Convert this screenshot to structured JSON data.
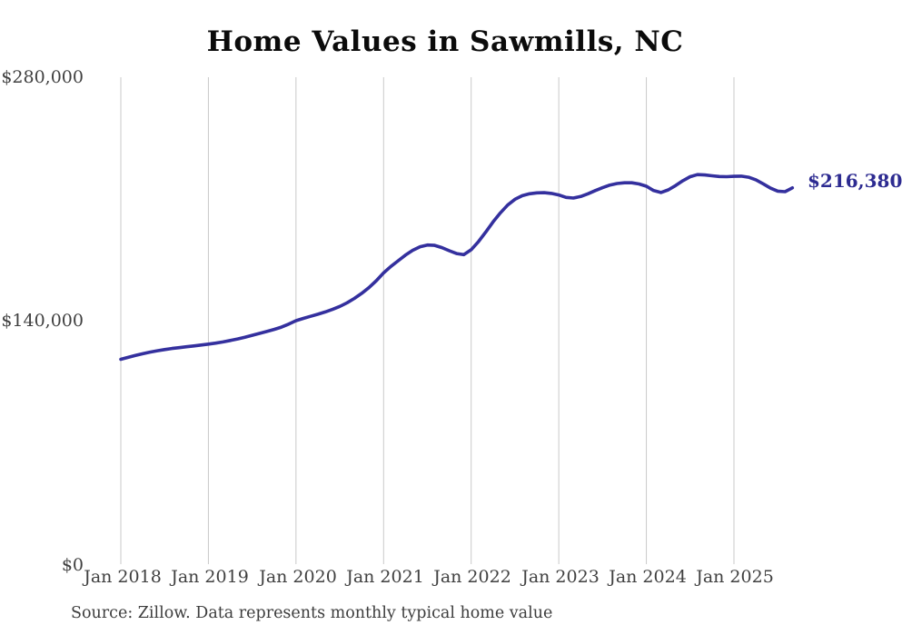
{
  "title": "Home Values in Sawmills, NC",
  "annotations": {
    "current_value": "$216,380"
  },
  "footer": {
    "source": "Source: Zillow. Data represents monthly typical home value"
  },
  "chart_data": {
    "type": "line",
    "title": "Home Values in Sawmills, NC",
    "series_name": "Monthly typical home value",
    "x_start_month": "Jan 2018",
    "x_end_month": "Sep 2025",
    "x_tick_labels": [
      "Jan 2018",
      "Jan 2019",
      "Jan 2020",
      "Jan 2021",
      "Jan 2022",
      "Jan 2023",
      "Jan 2024",
      "Jan 2025"
    ],
    "y_tick_labels": [
      "$0",
      "$140,000",
      "$280,000"
    ],
    "ylim": [
      0,
      280000
    ],
    "grid": "vertical-only",
    "legend": "none",
    "end_label": "$216,380",
    "line_color": "#34309e",
    "end_label_color": "#2d2b91",
    "gridline_color": "#c9c9c9",
    "axis_text_color": "#404040",
    "monthly_values": [
      117800,
      118900,
      120000,
      121000,
      121900,
      122700,
      123400,
      124000,
      124500,
      125000,
      125500,
      126000,
      126500,
      127100,
      127800,
      128600,
      129500,
      130500,
      131600,
      132700,
      133800,
      135000,
      136300,
      138000,
      140000,
      141300,
      142500,
      143700,
      145000,
      146500,
      148200,
      150300,
      152800,
      155700,
      159000,
      163000,
      167500,
      171200,
      174500,
      177700,
      180500,
      182500,
      183500,
      183300,
      182000,
      180200,
      178600,
      178000,
      180800,
      185500,
      191000,
      196800,
      202000,
      206500,
      209800,
      211900,
      213000,
      213500,
      213600,
      213200,
      212300,
      210900,
      210500,
      211400,
      213000,
      214800,
      216500,
      218000,
      218900,
      219300,
      219300,
      218600,
      217300,
      214800,
      213700,
      215200,
      217700,
      220500,
      222800,
      224000,
      223800,
      223300,
      222900,
      222800,
      223000,
      223100,
      222500,
      221000,
      218700,
      216200,
      214500,
      214200,
      216380
    ]
  }
}
